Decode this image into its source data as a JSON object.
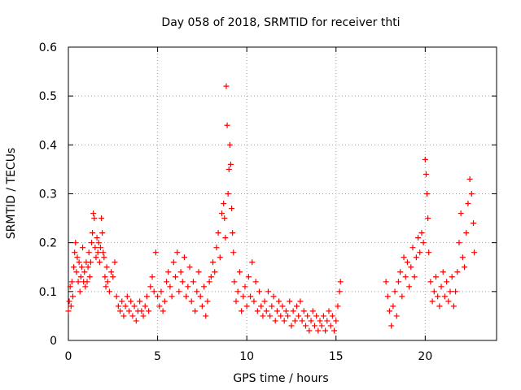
{
  "chart_data": {
    "type": "scatter",
    "title": "Day 058 of 2018, SRMTID for receiver thti",
    "xlabel": "GPS time / hours",
    "ylabel": "SRMTID / TECUs",
    "xlim": [
      0,
      24
    ],
    "ylim": [
      0,
      0.6
    ],
    "xticks": [
      0,
      5,
      10,
      15,
      20
    ],
    "xtick_labels": [
      "0",
      "5",
      "10",
      "15",
      "20"
    ],
    "yticks": [
      0,
      0.1,
      0.2,
      0.3,
      0.4,
      0.5,
      0.6
    ],
    "ytick_labels": [
      "0",
      "0.1",
      "0.2",
      "0.3",
      "0.4",
      "0.5",
      "0.6"
    ],
    "grid": true,
    "marker": "plus",
    "color": "#ff0000",
    "series": [
      {
        "name": "SRMTID",
        "points": [
          [
            0.0,
            0.06
          ],
          [
            0.05,
            0.08
          ],
          [
            0.1,
            0.11
          ],
          [
            0.15,
            0.07
          ],
          [
            0.2,
            0.12
          ],
          [
            0.25,
            0.09
          ],
          [
            0.3,
            0.15
          ],
          [
            0.35,
            0.18
          ],
          [
            0.4,
            0.2
          ],
          [
            0.45,
            0.14
          ],
          [
            0.5,
            0.17
          ],
          [
            0.55,
            0.12
          ],
          [
            0.6,
            0.16
          ],
          [
            0.65,
            0.1
          ],
          [
            0.7,
            0.13
          ],
          [
            0.75,
            0.15
          ],
          [
            0.8,
            0.19
          ],
          [
            0.85,
            0.12
          ],
          [
            0.9,
            0.14
          ],
          [
            0.95,
            0.11
          ],
          [
            1.0,
            0.16
          ],
          [
            1.05,
            0.12
          ],
          [
            1.1,
            0.15
          ],
          [
            1.15,
            0.18
          ],
          [
            1.2,
            0.13
          ],
          [
            1.25,
            0.16
          ],
          [
            1.3,
            0.2
          ],
          [
            1.35,
            0.22
          ],
          [
            1.4,
            0.26
          ],
          [
            1.45,
            0.25
          ],
          [
            1.5,
            0.19
          ],
          [
            1.55,
            0.17
          ],
          [
            1.6,
            0.21
          ],
          [
            1.65,
            0.18
          ],
          [
            1.7,
            0.2
          ],
          [
            1.75,
            0.16
          ],
          [
            1.8,
            0.19
          ],
          [
            1.85,
            0.25
          ],
          [
            1.9,
            0.22
          ],
          [
            1.95,
            0.18
          ],
          [
            2.0,
            0.17
          ],
          [
            2.05,
            0.13
          ],
          [
            2.1,
            0.11
          ],
          [
            2.15,
            0.15
          ],
          [
            2.2,
            0.12
          ],
          [
            2.3,
            0.1
          ],
          [
            2.4,
            0.14
          ],
          [
            2.5,
            0.13
          ],
          [
            2.6,
            0.16
          ],
          [
            2.7,
            0.09
          ],
          [
            2.8,
            0.07
          ],
          [
            2.9,
            0.06
          ],
          [
            3.0,
            0.08
          ],
          [
            3.1,
            0.05
          ],
          [
            3.2,
            0.07
          ],
          [
            3.3,
            0.09
          ],
          [
            3.4,
            0.06
          ],
          [
            3.5,
            0.08
          ],
          [
            3.6,
            0.05
          ],
          [
            3.7,
            0.07
          ],
          [
            3.8,
            0.04
          ],
          [
            3.9,
            0.06
          ],
          [
            4.0,
            0.08
          ],
          [
            4.1,
            0.06
          ],
          [
            4.2,
            0.05
          ],
          [
            4.3,
            0.07
          ],
          [
            4.4,
            0.09
          ],
          [
            4.5,
            0.06
          ],
          [
            4.6,
            0.11
          ],
          [
            4.7,
            0.13
          ],
          [
            4.8,
            0.1
          ],
          [
            4.9,
            0.18
          ],
          [
            5.0,
            0.09
          ],
          [
            5.1,
            0.07
          ],
          [
            5.2,
            0.1
          ],
          [
            5.3,
            0.06
          ],
          [
            5.4,
            0.08
          ],
          [
            5.5,
            0.12
          ],
          [
            5.6,
            0.14
          ],
          [
            5.7,
            0.11
          ],
          [
            5.8,
            0.09
          ],
          [
            5.9,
            0.16
          ],
          [
            6.0,
            0.13
          ],
          [
            6.1,
            0.18
          ],
          [
            6.2,
            0.1
          ],
          [
            6.3,
            0.14
          ],
          [
            6.4,
            0.12
          ],
          [
            6.5,
            0.17
          ],
          [
            6.6,
            0.09
          ],
          [
            6.7,
            0.11
          ],
          [
            6.8,
            0.15
          ],
          [
            6.9,
            0.08
          ],
          [
            7.0,
            0.12
          ],
          [
            7.1,
            0.06
          ],
          [
            7.2,
            0.1
          ],
          [
            7.3,
            0.14
          ],
          [
            7.4,
            0.09
          ],
          [
            7.5,
            0.07
          ],
          [
            7.6,
            0.11
          ],
          [
            7.7,
            0.05
          ],
          [
            7.8,
            0.08
          ],
          [
            7.9,
            0.12
          ],
          [
            8.0,
            0.13
          ],
          [
            8.1,
            0.16
          ],
          [
            8.2,
            0.14
          ],
          [
            8.3,
            0.19
          ],
          [
            8.4,
            0.22
          ],
          [
            8.5,
            0.17
          ],
          [
            8.6,
            0.26
          ],
          [
            8.7,
            0.28
          ],
          [
            8.75,
            0.25
          ],
          [
            8.8,
            0.21
          ],
          [
            8.85,
            0.52
          ],
          [
            8.9,
            0.44
          ],
          [
            8.95,
            0.3
          ],
          [
            9.0,
            0.35
          ],
          [
            9.05,
            0.4
          ],
          [
            9.1,
            0.36
          ],
          [
            9.15,
            0.27
          ],
          [
            9.2,
            0.22
          ],
          [
            9.25,
            0.18
          ],
          [
            9.3,
            0.12
          ],
          [
            9.4,
            0.08
          ],
          [
            9.5,
            0.1
          ],
          [
            9.6,
            0.14
          ],
          [
            9.7,
            0.06
          ],
          [
            9.8,
            0.09
          ],
          [
            9.9,
            0.11
          ],
          [
            10.0,
            0.07
          ],
          [
            10.1,
            0.13
          ],
          [
            10.2,
            0.09
          ],
          [
            10.3,
            0.16
          ],
          [
            10.4,
            0.08
          ],
          [
            10.5,
            0.12
          ],
          [
            10.6,
            0.06
          ],
          [
            10.7,
            0.1
          ],
          [
            10.8,
            0.07
          ],
          [
            10.9,
            0.05
          ],
          [
            11.0,
            0.08
          ],
          [
            11.1,
            0.06
          ],
          [
            11.2,
            0.1
          ],
          [
            11.3,
            0.05
          ],
          [
            11.4,
            0.07
          ],
          [
            11.5,
            0.09
          ],
          [
            11.6,
            0.04
          ],
          [
            11.7,
            0.06
          ],
          [
            11.8,
            0.08
          ],
          [
            11.9,
            0.05
          ],
          [
            12.0,
            0.07
          ],
          [
            12.1,
            0.04
          ],
          [
            12.2,
            0.06
          ],
          [
            12.3,
            0.05
          ],
          [
            12.4,
            0.08
          ],
          [
            12.5,
            0.03
          ],
          [
            12.6,
            0.06
          ],
          [
            12.7,
            0.04
          ],
          [
            12.8,
            0.07
          ],
          [
            12.9,
            0.05
          ],
          [
            13.0,
            0.08
          ],
          [
            13.1,
            0.04
          ],
          [
            13.2,
            0.06
          ],
          [
            13.3,
            0.03
          ],
          [
            13.4,
            0.05
          ],
          [
            13.5,
            0.02
          ],
          [
            13.6,
            0.04
          ],
          [
            13.7,
            0.06
          ],
          [
            13.8,
            0.03
          ],
          [
            13.9,
            0.05
          ],
          [
            14.0,
            0.02
          ],
          [
            14.1,
            0.04
          ],
          [
            14.2,
            0.03
          ],
          [
            14.3,
            0.05
          ],
          [
            14.4,
            0.02
          ],
          [
            14.5,
            0.04
          ],
          [
            14.6,
            0.06
          ],
          [
            14.7,
            0.03
          ],
          [
            14.8,
            0.05
          ],
          [
            14.9,
            0.02
          ],
          [
            15.0,
            0.04
          ],
          [
            15.1,
            0.07
          ],
          [
            15.2,
            0.1
          ],
          [
            15.25,
            0.12
          ],
          [
            17.8,
            0.12
          ],
          [
            17.9,
            0.09
          ],
          [
            18.0,
            0.06
          ],
          [
            18.1,
            0.03
          ],
          [
            18.2,
            0.07
          ],
          [
            18.3,
            0.1
          ],
          [
            18.4,
            0.05
          ],
          [
            18.5,
            0.12
          ],
          [
            18.6,
            0.14
          ],
          [
            18.7,
            0.09
          ],
          [
            18.8,
            0.17
          ],
          [
            18.9,
            0.13
          ],
          [
            19.0,
            0.16
          ],
          [
            19.1,
            0.11
          ],
          [
            19.2,
            0.15
          ],
          [
            19.3,
            0.19
          ],
          [
            19.4,
            0.13
          ],
          [
            19.5,
            0.17
          ],
          [
            19.6,
            0.21
          ],
          [
            19.7,
            0.18
          ],
          [
            19.8,
            0.22
          ],
          [
            19.9,
            0.2
          ],
          [
            20.0,
            0.37
          ],
          [
            20.05,
            0.34
          ],
          [
            20.1,
            0.3
          ],
          [
            20.15,
            0.25
          ],
          [
            20.2,
            0.18
          ],
          [
            20.3,
            0.12
          ],
          [
            20.4,
            0.08
          ],
          [
            20.5,
            0.1
          ],
          [
            20.6,
            0.13
          ],
          [
            20.7,
            0.09
          ],
          [
            20.8,
            0.07
          ],
          [
            20.9,
            0.11
          ],
          [
            21.0,
            0.14
          ],
          [
            21.1,
            0.09
          ],
          [
            21.2,
            0.12
          ],
          [
            21.3,
            0.08
          ],
          [
            21.4,
            0.1
          ],
          [
            21.5,
            0.13
          ],
          [
            21.6,
            0.07
          ],
          [
            21.7,
            0.1
          ],
          [
            21.8,
            0.14
          ],
          [
            21.9,
            0.2
          ],
          [
            22.0,
            0.26
          ],
          [
            22.1,
            0.17
          ],
          [
            22.2,
            0.15
          ],
          [
            22.3,
            0.22
          ],
          [
            22.4,
            0.28
          ],
          [
            22.5,
            0.33
          ],
          [
            22.6,
            0.3
          ],
          [
            22.7,
            0.24
          ],
          [
            22.75,
            0.18
          ]
        ]
      }
    ]
  }
}
